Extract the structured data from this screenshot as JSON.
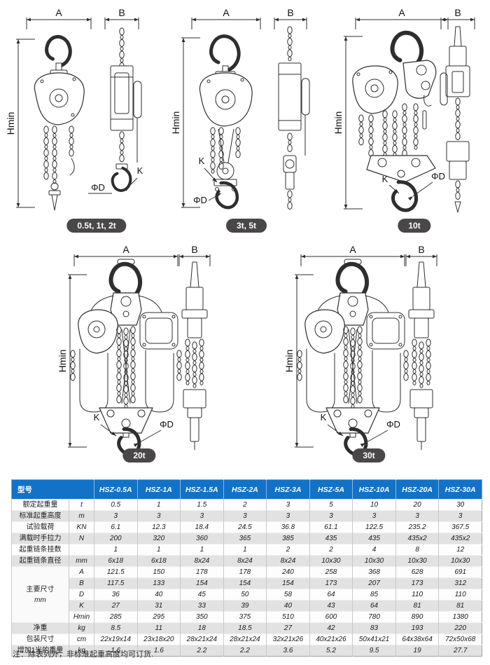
{
  "drawings": {
    "dim_labels": {
      "width": "A",
      "depth": "B",
      "height": "Hmin",
      "k": "K",
      "phi_d": "ΦD"
    },
    "groups": [
      {
        "caption": "0.5t, 1t, 2t"
      },
      {
        "caption": "3t, 5t"
      },
      {
        "caption": "10t"
      },
      {
        "caption": "20t"
      },
      {
        "caption": "30t"
      }
    ]
  },
  "table": {
    "model_header": "型号",
    "models": [
      "HSZ-0.5A",
      "HSZ-1A",
      "HSZ-1.5A",
      "HSZ-2A",
      "HSZ-3A",
      "HSZ-5A",
      "HSZ-10A",
      "HSZ-20A",
      "HSZ-30A"
    ],
    "rows": [
      {
        "label": "额定起重量",
        "unit": "t",
        "values": [
          "0.5",
          "1",
          "1.5",
          "2",
          "3",
          "5",
          "10",
          "20",
          "30"
        ]
      },
      {
        "label": "标准起重高度",
        "unit": "m",
        "values": [
          "3",
          "3",
          "3",
          "3",
          "3",
          "3",
          "3",
          "3",
          "3"
        ]
      },
      {
        "label": "试验载荷",
        "unit": "KN",
        "values": [
          "6.1",
          "12.3",
          "18.4",
          "24.5",
          "36.8",
          "61.1",
          "122.5",
          "235.2",
          "367.5"
        ]
      },
      {
        "label": "满载时手拉力",
        "unit": "N",
        "values": [
          "200",
          "320",
          "360",
          "365",
          "385",
          "435",
          "435",
          "435x2",
          "435x2"
        ]
      },
      {
        "label": "起重链条挂数",
        "unit": "",
        "values": [
          "1",
          "1",
          "1",
          "1",
          "2",
          "2",
          "4",
          "8",
          "12"
        ]
      },
      {
        "label": "起重链条直径",
        "unit": "mm",
        "values": [
          "6x18",
          "6x18",
          "8x24",
          "8x24",
          "8x24",
          "10x30",
          "10x30",
          "10x30",
          "10x30"
        ]
      },
      {
        "group_label": "主要尺寸",
        "group_unit": "mm",
        "group_span": 5,
        "unit": "A",
        "values": [
          "121.5",
          "150",
          "178",
          "178",
          "240",
          "258",
          "368",
          "628",
          "691"
        ]
      },
      {
        "unit": "B",
        "values": [
          "117.5",
          "133",
          "154",
          "154",
          "154",
          "173",
          "207",
          "173",
          "312"
        ]
      },
      {
        "unit": "D",
        "values": [
          "36",
          "40",
          "45",
          "50",
          "58",
          "64",
          "85",
          "110",
          "110"
        ]
      },
      {
        "unit": "K",
        "values": [
          "27",
          "31",
          "33",
          "39",
          "40",
          "43",
          "64",
          "81",
          "81"
        ]
      },
      {
        "unit": "Hmin",
        "values": [
          "285",
          "295",
          "350",
          "375",
          "510",
          "600",
          "780",
          "890",
          "1380"
        ]
      },
      {
        "label": "净重",
        "unit": "kg",
        "values": [
          "8.5",
          "11",
          "18",
          "18.5",
          "27",
          "42",
          "83",
          "193",
          "220"
        ]
      },
      {
        "label": "包装尺寸",
        "unit": "cm",
        "values": [
          "22x19x14",
          "23x18x20",
          "28x21x24",
          "28x21x24",
          "32x21x26",
          "40x21x26",
          "50x41x21",
          "64x38x64",
          "72x50x68"
        ]
      },
      {
        "label": "增加1米的重量",
        "unit": "kg",
        "values": [
          "1.6",
          "1.6",
          "2.2",
          "2.2",
          "3.6",
          "5.2",
          "9.5",
          "19",
          "27.7"
        ]
      }
    ],
    "note": "注：除表列外，非标准起重高度均可订货."
  },
  "colors": {
    "header_blue": "#1272c8",
    "stripe": "#e2e2e2",
    "badge": "#4a4748",
    "line": "#2e2e2e"
  }
}
